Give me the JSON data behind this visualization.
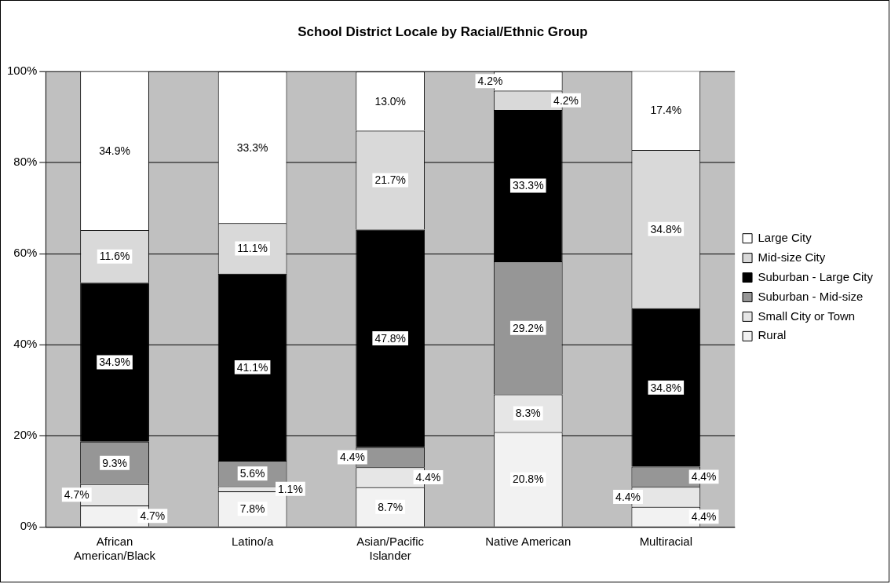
{
  "chart_data": {
    "type": "bar",
    "stacked": true,
    "title": "School District Locale by Racial/Ethnic Group",
    "categories": [
      "African American/Black",
      "Latino/a",
      "Asian/Pacific Islander",
      "Native American",
      "Multiracial"
    ],
    "series": [
      {
        "name": "Rural",
        "color": "#f2f2f2",
        "values": [
          4.7,
          7.8,
          8.7,
          20.8,
          4.4
        ],
        "value_labels": [
          "4.7%",
          "7.8%",
          "8.7%",
          "20.8%",
          "4.4%"
        ]
      },
      {
        "name": "Small City or Town",
        "color": "#e6e6e6",
        "values": [
          4.7,
          1.1,
          4.4,
          8.3,
          4.4
        ],
        "value_labels": [
          "4.7%",
          "1.1%",
          "4.4%",
          "8.3%",
          "4.4%"
        ]
      },
      {
        "name": "Suburban - Mid-size",
        "color": "#969696",
        "values": [
          9.3,
          5.6,
          4.4,
          29.2,
          4.4
        ],
        "value_labels": [
          "9.3%",
          "5.6%",
          "4.4%",
          "29.2%",
          "4.4%"
        ]
      },
      {
        "name": "Suburban - Large City",
        "color": "#000000",
        "values": [
          34.9,
          41.1,
          47.8,
          33.3,
          34.8
        ],
        "value_labels": [
          "34.9%",
          "41.1%",
          "47.8%",
          "33.3%",
          "34.8%"
        ]
      },
      {
        "name": "Mid-size City",
        "color": "#d9d9d9",
        "values": [
          11.6,
          11.1,
          21.7,
          4.2,
          34.8
        ],
        "value_labels": [
          "11.6%",
          "11.1%",
          "21.7%",
          "4.2%",
          "34.8%"
        ]
      },
      {
        "name": "Large City",
        "color": "#ffffff",
        "values": [
          34.9,
          33.3,
          13.0,
          4.2,
          17.4
        ],
        "value_labels": [
          "34.9%",
          "33.3%",
          "13.0%",
          "4.2%",
          "17.4%"
        ]
      }
    ],
    "ylim": [
      0,
      100
    ],
    "yticks": [
      {
        "value": 0,
        "label": "0%"
      },
      {
        "value": 20,
        "label": "20%"
      },
      {
        "value": 40,
        "label": "40%"
      },
      {
        "value": 60,
        "label": "60%"
      },
      {
        "value": 80,
        "label": "80%"
      },
      {
        "value": 100,
        "label": "100%"
      }
    ],
    "grid": "y",
    "legend": "right"
  }
}
